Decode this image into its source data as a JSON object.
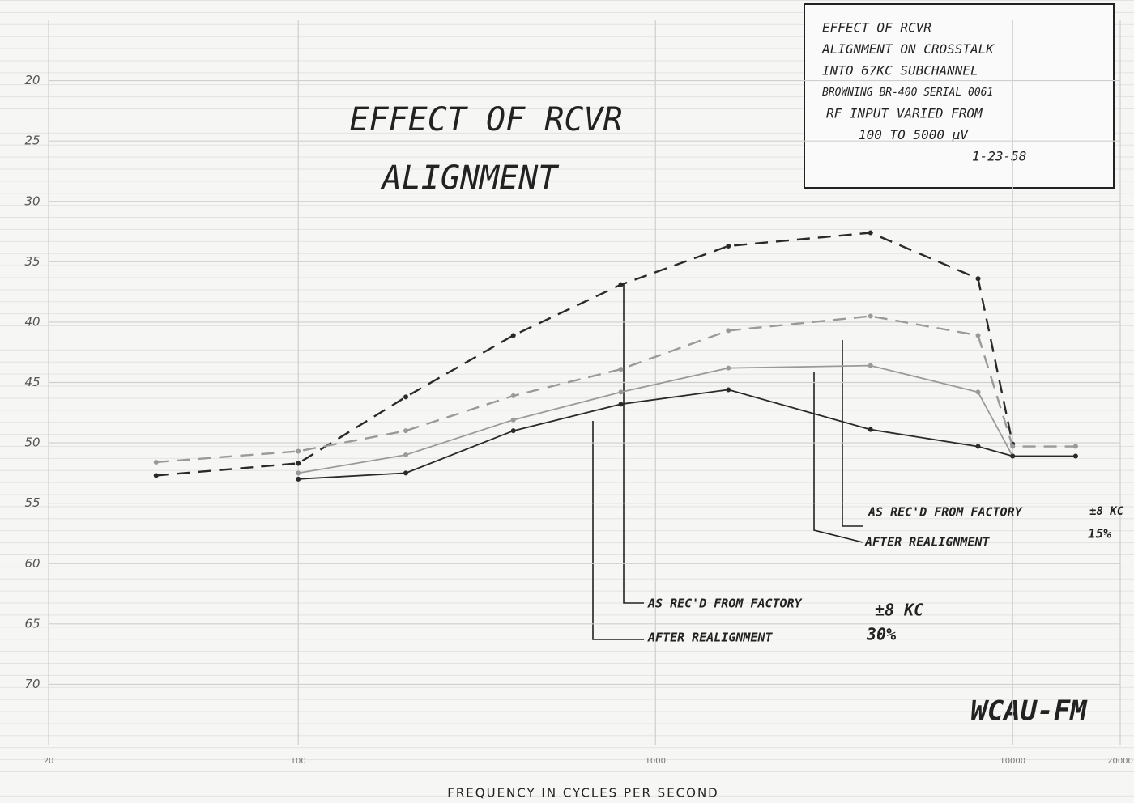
{
  "chart_data": {
    "type": "line",
    "title": [
      "EFFECT OF RCVR",
      "ALIGNMENT"
    ],
    "note": [
      "EFFECT OF RCVR",
      "ALIGNMENT ON CROSSTALK",
      "INTO 67KC SUBCHANNEL",
      "BROWNING BR-400 SERIAL 0061",
      "RF INPUT VARIED FROM",
      "100 TO 5000 µV",
      "1-23-58"
    ],
    "x_label": "FREQUENCY IN CYCLES PER SECOND",
    "stamp": "WCAU-FM",
    "x": [
      40,
      100,
      200,
      400,
      800,
      1600,
      4000,
      8000,
      10000,
      15000
    ],
    "series": [
      {
        "color": "#2a2a2a",
        "dashed": true,
        "values": [
          52.7,
          51.7,
          46.2,
          41.1,
          36.9,
          33.7,
          32.6,
          36.4,
          50.1,
          null
        ]
      },
      {
        "color": "#9a9a9a",
        "dashed": true,
        "values": [
          51.6,
          50.7,
          49.0,
          46.1,
          43.9,
          40.7,
          39.5,
          41.1,
          50.3,
          50.3
        ]
      },
      {
        "color": "#9a9a9a",
        "dashed": false,
        "values": [
          null,
          52.5,
          51.0,
          48.1,
          45.8,
          43.8,
          43.6,
          45.8,
          51.1,
          51.1
        ]
      },
      {
        "color": "#2a2a2a",
        "dashed": false,
        "values": [
          null,
          53.0,
          52.5,
          49.0,
          46.8,
          45.6,
          48.9,
          50.3,
          51.1,
          51.1
        ]
      }
    ],
    "annotations": [
      "AS REC'D FROM FACTORY",
      "AFTER REALIGNMENT",
      "±8 KC",
      "30%",
      "AS REC'D FROM FACTORY",
      "AFTER REALIGNMENT",
      "±8 KC",
      "15%"
    ],
    "x_log": true,
    "y_reversed": true,
    "xlim": [
      20,
      20000
    ],
    "xticks": [
      20,
      100,
      1000,
      10000,
      20000
    ],
    "ylim": [
      15,
      75
    ],
    "yticks": [
      20,
      25,
      30,
      35,
      40,
      45,
      50,
      55,
      60,
      65,
      70
    ],
    "grid": true
  }
}
